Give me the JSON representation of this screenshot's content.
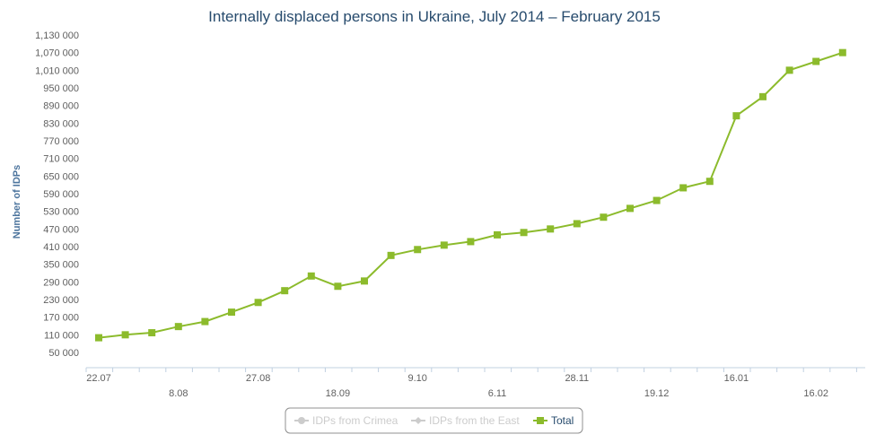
{
  "chart_data": {
    "type": "line",
    "title": "Internally displaced persons in Ukraine, July 2014 – February 2015",
    "ylabel": "Number of IDPs",
    "xlabel": "",
    "ylim": [
      50000,
      1130000
    ],
    "y_ticks": [
      50000,
      110000,
      170000,
      230000,
      290000,
      350000,
      410000,
      470000,
      530000,
      590000,
      650000,
      710000,
      770000,
      830000,
      890000,
      950000,
      1010000,
      1070000,
      1130000
    ],
    "y_tick_labels": [
      "50 000",
      "110 000",
      "170 000",
      "230 000",
      "290 000",
      "350 000",
      "410 000",
      "470 000",
      "530 000",
      "590 000",
      "650 000",
      "710 000",
      "770 000",
      "830 000",
      "890 000",
      "950 000",
      "1,010 000",
      "1,070 000",
      "1,130 000"
    ],
    "x_tick_labels": [
      {
        "label": "22.07",
        "index": 0,
        "row": 0
      },
      {
        "label": "8.08",
        "index": 3,
        "row": 1
      },
      {
        "label": "27.08",
        "index": 6,
        "row": 0
      },
      {
        "label": "18.09",
        "index": 9,
        "row": 1
      },
      {
        "label": "9.10",
        "index": 12,
        "row": 0
      },
      {
        "label": "6.11",
        "index": 15,
        "row": 1
      },
      {
        "label": "28.11",
        "index": 18,
        "row": 0
      },
      {
        "label": "19.12",
        "index": 21,
        "row": 1
      },
      {
        "label": "16.01",
        "index": 24,
        "row": 0
      },
      {
        "label": "16.02",
        "index": 27,
        "row": 1
      }
    ],
    "grid": false,
    "legend_position": "bottom-center",
    "series": [
      {
        "name": "IDPs from Crimea",
        "values": [],
        "color": "#cccccc",
        "marker": "circle",
        "visible": false
      },
      {
        "name": "IDPs from the East",
        "values": [],
        "color": "#cccccc",
        "marker": "diamond",
        "visible": false
      },
      {
        "name": "Total",
        "color": "#8cbb2c",
        "marker": "square",
        "visible": true,
        "values": [
          100000,
          110000,
          117000,
          138000,
          155000,
          187000,
          220000,
          260000,
          310000,
          275000,
          293000,
          380000,
          400000,
          415000,
          427000,
          450000,
          458000,
          470000,
          488000,
          510000,
          540000,
          567000,
          610000,
          632000,
          855000,
          920000,
          1010000,
          1040000,
          1070000
        ]
      }
    ]
  },
  "legend": {
    "items": [
      "IDPs from Crimea",
      "IDPs from the East",
      "Total"
    ]
  }
}
